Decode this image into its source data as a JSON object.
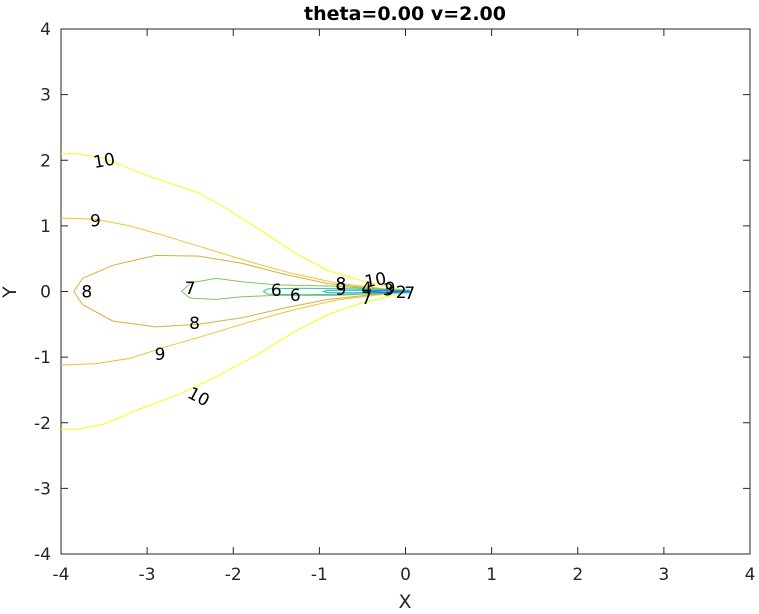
{
  "chart_data": {
    "type": "contour",
    "title": "theta=0.00 v=2.00",
    "xlabel": "X",
    "ylabel": "Y",
    "xlim": [
      -4,
      4
    ],
    "ylim": [
      -4,
      4
    ],
    "xticks": [
      "-4",
      "-3",
      "-2",
      "-1",
      "0",
      "1",
      "2",
      "3",
      "4"
    ],
    "yticks": [
      "-4",
      "-3",
      "-2",
      "-1",
      "0",
      "1",
      "2",
      "3",
      "4"
    ],
    "grid": false,
    "colormap": "parula",
    "levels": [
      {
        "level": 10,
        "color": "#f9fb0e",
        "paths": [
          [
            [
              -4,
              2.1
            ],
            [
              -3.8,
              2.1
            ],
            [
              -3.5,
              2.03
            ],
            [
              -3.1,
              1.82
            ],
            [
              -2.8,
              1.68
            ],
            [
              -2.4,
              1.5
            ],
            [
              -2.1,
              1.28
            ],
            [
              -1.7,
              0.95
            ],
            [
              -1.3,
              0.6
            ],
            [
              -0.9,
              0.32
            ],
            [
              -0.5,
              0.16
            ],
            [
              -0.15,
              0.06
            ],
            [
              0.05,
              0.0
            ]
          ],
          [
            [
              -4,
              -2.1
            ],
            [
              -3.8,
              -2.1
            ],
            [
              -3.5,
              -2.02
            ],
            [
              -3.1,
              -1.8
            ],
            [
              -2.6,
              -1.55
            ],
            [
              -2.2,
              -1.3
            ],
            [
              -1.7,
              -0.95
            ],
            [
              -1.3,
              -0.62
            ],
            [
              -0.9,
              -0.35
            ],
            [
              -0.5,
              -0.17
            ],
            [
              -0.15,
              -0.06
            ],
            [
              0.05,
              0.0
            ]
          ]
        ]
      },
      {
        "level": 9,
        "color": "#f1c232",
        "paths": [
          [
            [
              -4,
              1.12
            ],
            [
              -3.6,
              1.1
            ],
            [
              -3.2,
              1.0
            ],
            [
              -2.8,
              0.85
            ],
            [
              -2.3,
              0.65
            ],
            [
              -1.8,
              0.45
            ],
            [
              -1.3,
              0.27
            ],
            [
              -0.8,
              0.13
            ],
            [
              -0.3,
              0.05
            ],
            [
              0.05,
              0.0
            ]
          ],
          [
            [
              -4,
              -1.12
            ],
            [
              -3.6,
              -1.1
            ],
            [
              -3.2,
              -1.02
            ],
            [
              -2.8,
              -0.85
            ],
            [
              -2.3,
              -0.66
            ],
            [
              -1.8,
              -0.46
            ],
            [
              -1.3,
              -0.28
            ],
            [
              -0.8,
              -0.13
            ],
            [
              -0.3,
              -0.05
            ],
            [
              0.05,
              0.0
            ]
          ]
        ]
      },
      {
        "level": 8,
        "color": "#d8b13a",
        "paths": [
          [
            [
              0.05,
              0.0
            ],
            [
              -0.4,
              0.05
            ],
            [
              -0.9,
              0.12
            ],
            [
              -1.4,
              0.26
            ],
            [
              -1.9,
              0.43
            ],
            [
              -2.4,
              0.54
            ],
            [
              -2.9,
              0.55
            ],
            [
              -3.4,
              0.4
            ],
            [
              -3.75,
              0.2
            ],
            [
              -3.85,
              0.0
            ],
            [
              -3.75,
              -0.2
            ],
            [
              -3.4,
              -0.45
            ],
            [
              -2.9,
              -0.54
            ],
            [
              -2.4,
              -0.5
            ],
            [
              -1.9,
              -0.4
            ],
            [
              -1.4,
              -0.25
            ],
            [
              -0.9,
              -0.12
            ],
            [
              -0.4,
              -0.05
            ],
            [
              0.05,
              0.0
            ]
          ]
        ]
      },
      {
        "level": 7,
        "color": "#7dc75a",
        "paths": [
          [
            [
              0.05,
              0.0
            ],
            [
              -0.8,
              0.08
            ],
            [
              -1.5,
              0.1
            ],
            [
              -1.9,
              0.15
            ],
            [
              -2.2,
              0.2
            ],
            [
              -2.5,
              0.13
            ],
            [
              -2.6,
              0.0
            ],
            [
              -2.5,
              -0.1
            ],
            [
              -2.2,
              -0.12
            ],
            [
              -1.9,
              -0.08
            ],
            [
              -1.5,
              -0.06
            ],
            [
              -0.8,
              -0.06
            ],
            [
              0.05,
              0.0
            ]
          ]
        ]
      },
      {
        "level": 6,
        "color": "#3cc5a0",
        "paths": [
          [
            [
              0.05,
              0.02
            ],
            [
              -0.6,
              0.04
            ],
            [
              -1.2,
              0.05
            ],
            [
              -1.6,
              0.04
            ],
            [
              -1.65,
              0.0
            ],
            [
              -1.6,
              -0.04
            ],
            [
              -1.2,
              -0.05
            ],
            [
              -0.6,
              -0.04
            ],
            [
              0.05,
              -0.02
            ]
          ]
        ]
      },
      {
        "level": 4,
        "color": "#1eaad6",
        "paths": [
          [
            [
              0.05,
              0.01
            ],
            [
              -0.4,
              0.02
            ],
            [
              -0.9,
              0.02
            ],
            [
              -0.95,
              0.0
            ],
            [
              -0.9,
              -0.02
            ],
            [
              -0.4,
              -0.02
            ],
            [
              0.05,
              -0.01
            ]
          ]
        ]
      },
      {
        "level": 2,
        "color": "#2f73dc",
        "paths": [
          [
            [
              0.05,
              0.0
            ],
            [
              -0.25,
              0.01
            ],
            [
              -0.5,
              0.0
            ],
            [
              -0.25,
              -0.01
            ],
            [
              0.05,
              0.0
            ]
          ]
        ]
      }
    ],
    "labels": [
      {
        "text": "10",
        "x": -3.5,
        "y": 2.0,
        "angle": -10
      },
      {
        "text": "10",
        "x": -2.4,
        "y": -1.6,
        "angle": 28
      },
      {
        "text": "10",
        "x": -0.35,
        "y": 0.18,
        "angle": -10
      },
      {
        "text": "9",
        "x": -3.6,
        "y": 1.08,
        "angle": 0
      },
      {
        "text": "9",
        "x": -2.85,
        "y": -0.95,
        "angle": 0
      },
      {
        "text": "9",
        "x": -0.75,
        "y": 0.04,
        "angle": 0
      },
      {
        "text": "9",
        "x": -0.18,
        "y": 0.05,
        "angle": 0
      },
      {
        "text": "8",
        "x": -3.7,
        "y": 0.0,
        "angle": 0
      },
      {
        "text": "8",
        "x": -2.45,
        "y": -0.48,
        "angle": 0
      },
      {
        "text": "8",
        "x": -0.75,
        "y": 0.12,
        "angle": 0
      },
      {
        "text": "7",
        "x": -2.5,
        "y": 0.05,
        "angle": 0
      },
      {
        "text": "7",
        "x": -0.45,
        "y": -0.1,
        "angle": 0
      },
      {
        "text": "7",
        "x": 0.05,
        "y": -0.02,
        "angle": 0
      },
      {
        "text": "6",
        "x": -1.5,
        "y": 0.02,
        "angle": 0
      },
      {
        "text": "6",
        "x": -1.28,
        "y": -0.05,
        "angle": 0
      },
      {
        "text": "4",
        "x": -0.45,
        "y": 0.05,
        "angle": 0
      },
      {
        "text": "3",
        "x": -0.2,
        "y": 0.03,
        "angle": 0
      },
      {
        "text": "2",
        "x": -0.05,
        "y": -0.01,
        "angle": 0
      }
    ]
  }
}
